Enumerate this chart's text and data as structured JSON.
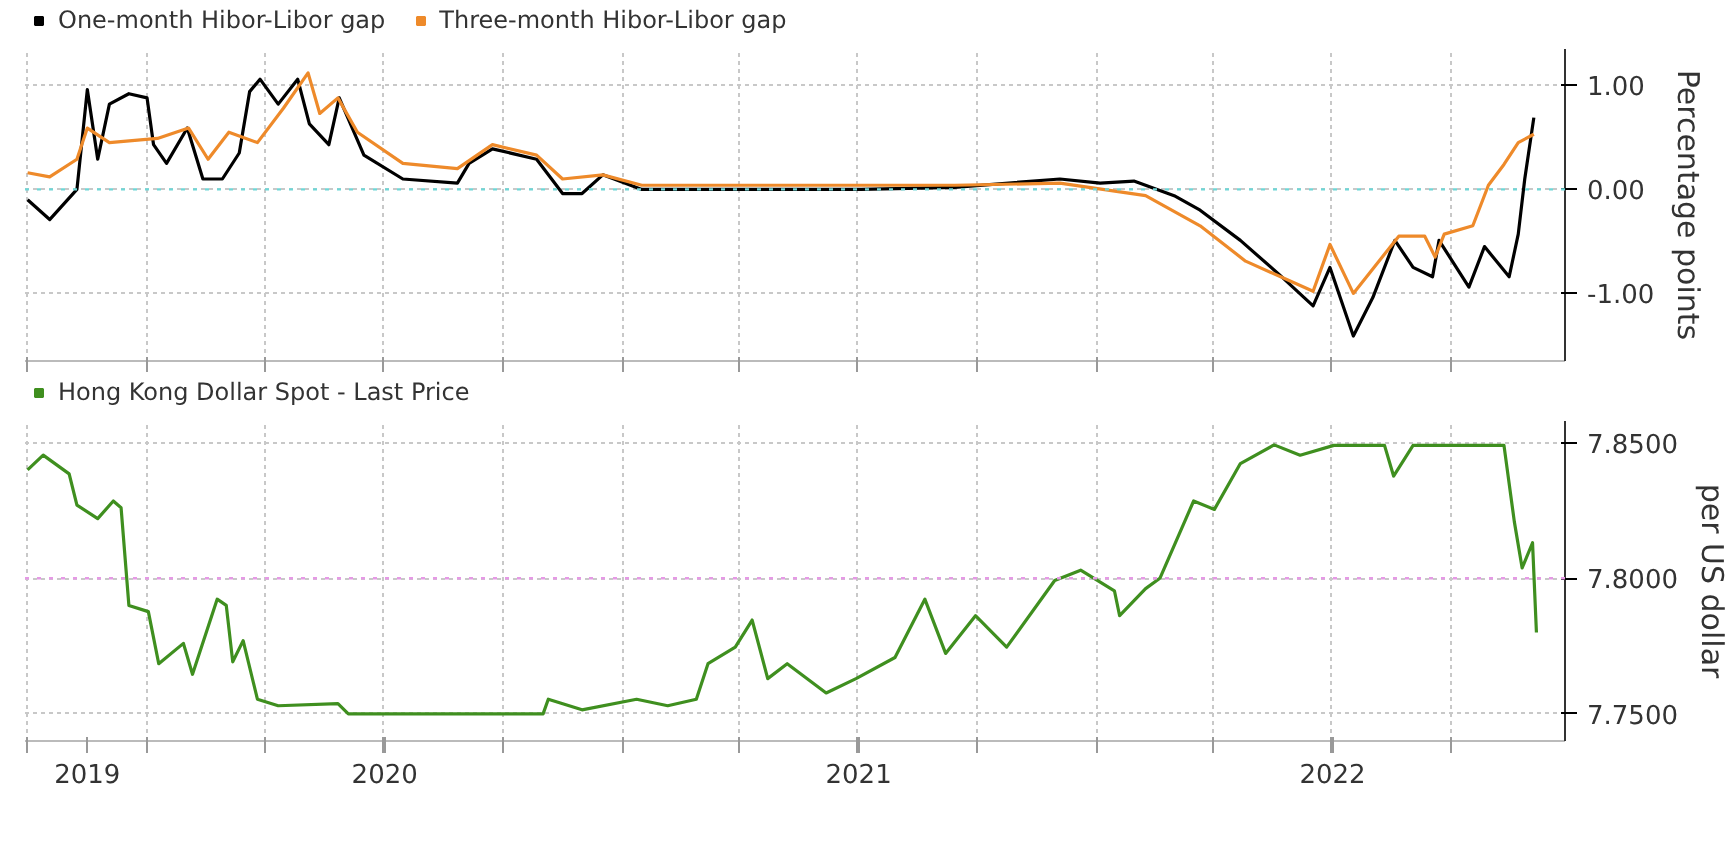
{
  "chart_data": [
    {
      "type": "line",
      "ylabel": "Percentage points",
      "legend": "top left",
      "grid": true,
      "tick_labels": "y",
      "xlim": [
        "2019-09-29",
        "2022-12-28"
      ],
      "xticks": [
        {
          "value": "2019-10-01",
          "label": null
        },
        {
          "value": "2020-01-01",
          "label": null
        },
        {
          "value": "2020-04-01",
          "label": null
        },
        {
          "value": "2020-07-01",
          "label": null
        },
        {
          "value": "2020-10-01",
          "label": null
        },
        {
          "value": "2021-01-01",
          "label": null
        },
        {
          "value": "2021-04-01",
          "label": null
        },
        {
          "value": "2021-07-01",
          "label": null
        },
        {
          "value": "2021-10-01",
          "label": null
        },
        {
          "value": "2022-01-01",
          "label": null
        },
        {
          "value": "2022-04-01",
          "label": null
        },
        {
          "value": "2022-07-01",
          "label": null
        },
        {
          "value": "2022-10-01",
          "label": null
        }
      ],
      "ylim": [
        -1.65,
        1.35
      ],
      "yticks": [
        {
          "value": 1,
          "label": "1.00"
        },
        {
          "value": 0,
          "label": "0.00"
        },
        {
          "value": -1,
          "label": "-1.00"
        }
      ],
      "ref_lines": [
        {
          "axis": "y",
          "value": 0,
          "label": null,
          "color": "#6fd6d6",
          "line_style": "dotted"
        }
      ],
      "series": [
        {
          "name": "One-month Hibor-Libor gap",
          "color": "#000000",
          "x": [
            "2019-10-01",
            "2019-10-18",
            "2019-11-08",
            "2019-11-16",
            "2019-11-24",
            "2019-12-03",
            "2019-12-18",
            "2020-01-01",
            "2020-01-06",
            "2020-01-16",
            "2020-02-01",
            "2020-02-13",
            "2020-02-28",
            "2020-03-12",
            "2020-03-20",
            "2020-03-28",
            "2020-04-11",
            "2020-04-26",
            "2020-05-05",
            "2020-05-20",
            "2020-05-28",
            "2020-06-16",
            "2020-07-16",
            "2020-08-27",
            "2020-09-05",
            "2020-09-23",
            "2020-10-27",
            "2020-11-16",
            "2020-12-01",
            "2020-12-17",
            "2021-01-16",
            "2021-04-21",
            "2021-07-04",
            "2021-09-14",
            "2021-12-04",
            "2022-01-04",
            "2022-01-30",
            "2022-03-02",
            "2022-03-22",
            "2022-04-22",
            "2022-05-22",
            "2022-06-17",
            "2022-06-30",
            "2022-07-18",
            "2022-08-02",
            "2022-08-19",
            "2022-09-02",
            "2022-09-17",
            "2022-09-22",
            "2022-10-15",
            "2022-10-27",
            "2022-11-15",
            "2022-11-22",
            "2022-11-27",
            "2022-12-04"
          ],
          "values": [
            -0.1,
            -0.29,
            0.0,
            0.96,
            0.29,
            0.82,
            0.92,
            0.88,
            0.43,
            0.25,
            0.59,
            0.1,
            0.1,
            0.35,
            0.94,
            1.06,
            0.82,
            1.06,
            0.63,
            0.43,
            0.88,
            0.33,
            0.1,
            0.06,
            0.25,
            0.39,
            0.29,
            -0.04,
            -0.04,
            0.14,
            0.0,
            0.0,
            0.0,
            0.02,
            0.1,
            0.06,
            0.08,
            -0.06,
            -0.2,
            -0.49,
            -0.82,
            -1.12,
            -0.75,
            -1.41,
            -1.04,
            -0.49,
            -0.75,
            -0.84,
            -0.49,
            -0.94,
            -0.55,
            -0.84,
            -0.43,
            0.1,
            0.69
          ]
        },
        {
          "name": "Three-month Hibor-Libor gap",
          "color": "#ee8a2a",
          "x": [
            "2019-10-01",
            "2019-10-18",
            "2019-11-08",
            "2019-11-16",
            "2019-12-03",
            "2020-01-09",
            "2020-02-02",
            "2020-02-17",
            "2020-03-04",
            "2020-03-26",
            "2020-04-15",
            "2020-05-04",
            "2020-05-13",
            "2020-05-27",
            "2020-06-11",
            "2020-07-16",
            "2020-08-27",
            "2020-09-23",
            "2020-10-27",
            "2020-11-16",
            "2020-12-17",
            "2021-01-16",
            "2021-04-21",
            "2021-07-04",
            "2021-09-14",
            "2021-12-04",
            "2022-02-08",
            "2022-03-22",
            "2022-04-26",
            "2022-06-17",
            "2022-06-30",
            "2022-07-18",
            "2022-08-22",
            "2022-09-11",
            "2022-09-19",
            "2022-09-26",
            "2022-10-18",
            "2022-10-30",
            "2022-11-11",
            "2022-11-22",
            "2022-12-04"
          ],
          "values": [
            0.16,
            0.12,
            0.29,
            0.59,
            0.45,
            0.49,
            0.59,
            0.29,
            0.55,
            0.45,
            0.78,
            1.12,
            0.73,
            0.88,
            0.55,
            0.25,
            0.2,
            0.43,
            0.33,
            0.1,
            0.14,
            0.04,
            0.04,
            0.04,
            0.04,
            0.06,
            -0.06,
            -0.35,
            -0.69,
            -0.98,
            -0.53,
            -1.0,
            -0.45,
            -0.45,
            -0.65,
            -0.43,
            -0.35,
            0.04,
            0.24,
            0.45,
            0.53
          ]
        }
      ]
    },
    {
      "type": "line",
      "ylabel": "per US dollar",
      "legend": "top left",
      "grid": true,
      "xlim": [
        "2019-09-29",
        "2022-12-28"
      ],
      "xticks": [
        {
          "value": "2019-10-01",
          "label": null
        },
        {
          "value": "2020-01-01",
          "label": null
        },
        {
          "value": "2020-04-01",
          "label": null
        },
        {
          "value": "2020-07-01",
          "label": null
        },
        {
          "value": "2020-10-01",
          "label": null
        },
        {
          "value": "2021-01-01",
          "label": null
        },
        {
          "value": "2021-04-01",
          "label": null
        },
        {
          "value": "2021-07-01",
          "label": null
        },
        {
          "value": "2021-10-01",
          "label": null
        },
        {
          "value": "2022-01-01",
          "label": null
        },
        {
          "value": "2022-04-01",
          "label": null
        },
        {
          "value": "2022-07-01",
          "label": null
        },
        {
          "value": "2022-10-01",
          "label": null
        },
        {
          "value": "2019-11-16",
          "label": "2019"
        },
        {
          "value": "2020-07-02",
          "label": "2020"
        },
        {
          "value": "2021-07-02",
          "label": "2021"
        },
        {
          "value": "2022-07-02",
          "label": "2022"
        }
      ],
      "ylim": [
        7.74,
        7.858
      ],
      "yticks": [
        {
          "value": 7.85,
          "label": "7.8500"
        },
        {
          "value": 7.8,
          "label": "7.8000"
        },
        {
          "value": 7.75,
          "label": "7.7500"
        }
      ],
      "ref_lines": [
        {
          "axis": "y",
          "value": 7.8,
          "label": null,
          "color": "#e59ae5",
          "line_style": "dotted"
        }
      ],
      "series": [
        {
          "name": "Hong Kong Dollar Spot - Last Price",
          "color": "#3f8f1f",
          "x": [
            "2019-10-01",
            "2019-10-13",
            "2019-11-02",
            "2019-11-08",
            "2019-11-24",
            "2019-12-06",
            "2019-12-12",
            "2019-12-18",
            "2020-01-02",
            "2020-01-10",
            "2020-01-29",
            "2020-02-05",
            "2020-02-24",
            "2020-03-02",
            "2020-03-07",
            "2020-03-15",
            "2020-03-26",
            "2020-04-11",
            "2020-05-27",
            "2020-06-04",
            "2020-11-01",
            "2020-11-05",
            "2020-12-01",
            "2021-01-12",
            "2021-02-05",
            "2021-02-27",
            "2021-03-08",
            "2021-03-29",
            "2021-04-11",
            "2021-04-23",
            "2021-05-08",
            "2021-06-07",
            "2021-06-30",
            "2021-07-30",
            "2021-08-22",
            "2021-09-07",
            "2021-09-30",
            "2021-10-24",
            "2021-11-30",
            "2021-12-20",
            "2022-01-15",
            "2022-01-19",
            "2022-02-08",
            "2022-02-19",
            "2022-03-17",
            "2022-04-02",
            "2022-04-22",
            "2022-05-18",
            "2022-06-07",
            "2022-07-03",
            "2022-08-11",
            "2022-08-18",
            "2022-09-02",
            "2022-11-11",
            "2022-11-19",
            "2022-11-25",
            "2022-12-03",
            "2022-12-06"
          ],
          "values": [
            7.84,
            7.8454,
            7.8385,
            7.827,
            7.822,
            7.8285,
            7.826,
            7.79,
            7.7877,
            7.7685,
            7.776,
            7.7646,
            7.7923,
            7.79,
            7.7692,
            7.777,
            7.7554,
            7.753,
            7.7538,
            7.75,
            7.75,
            7.7554,
            7.7515,
            7.7554,
            7.753,
            7.7554,
            7.7685,
            7.7746,
            7.7846,
            7.763,
            7.7685,
            7.7577,
            7.763,
            7.7708,
            7.7923,
            7.7723,
            7.7862,
            7.7746,
            7.7992,
            7.803,
            7.7954,
            7.7862,
            7.7962,
            7.8,
            7.8285,
            7.8254,
            7.8423,
            7.8492,
            7.8454,
            7.849,
            7.849,
            7.8377,
            7.849,
            7.849,
            7.8208,
            7.8038,
            7.8131,
            7.78
          ]
        }
      ]
    }
  ]
}
